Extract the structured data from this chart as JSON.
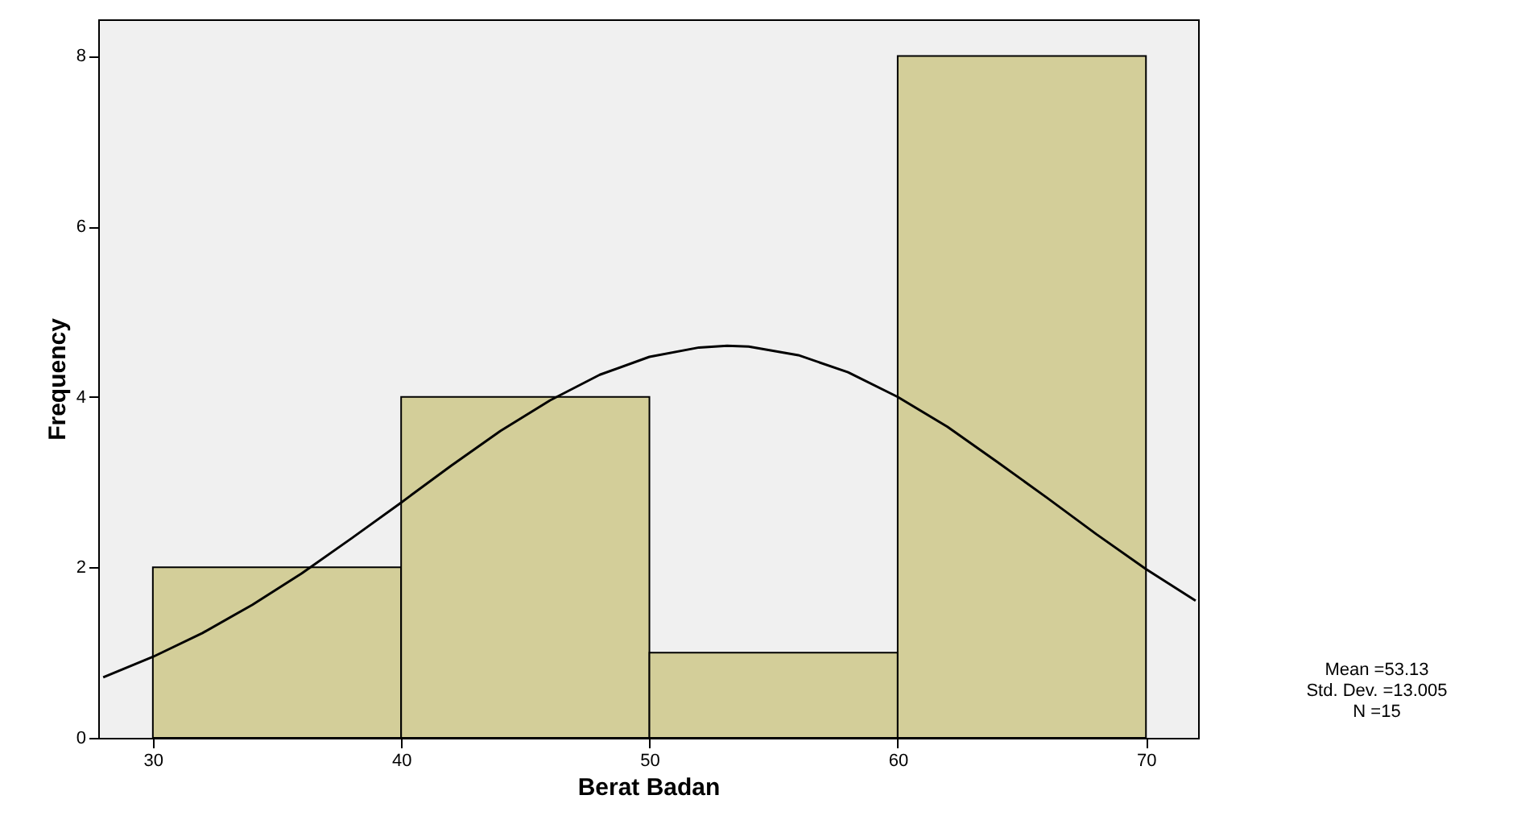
{
  "chart_data": {
    "type": "histogram",
    "xlabel": "Berat Badan",
    "ylabel": "Frequency",
    "bins": [
      30,
      40,
      50,
      60,
      70
    ],
    "values": [
      2,
      4,
      1,
      8
    ],
    "color": "#d3ce99",
    "series": [
      {
        "type": "line",
        "color": "#000000",
        "x": [
          28,
          30,
          32,
          34,
          36,
          38,
          40,
          42,
          44,
          46,
          48,
          50,
          52,
          53.13,
          54,
          56,
          58,
          60,
          62,
          64,
          66,
          68,
          70,
          72
        ],
        "values": [
          0.71,
          0.95,
          1.23,
          1.56,
          1.93,
          2.34,
          2.76,
          3.19,
          3.6,
          3.96,
          4.26,
          4.47,
          4.58,
          4.6,
          4.59,
          4.49,
          4.29,
          4.0,
          3.65,
          3.24,
          2.82,
          2.39,
          1.98,
          1.61
        ]
      }
    ],
    "xlim": [
      27.8,
      72.1
    ],
    "ylim": [
      0,
      8.43
    ],
    "xticks": [
      30,
      40,
      50,
      60,
      70
    ],
    "yticks": [
      0,
      2,
      4,
      6,
      8
    ],
    "annotations": [
      "Mean =53.13",
      "Std. Dev. =13.005",
      "N =15"
    ]
  }
}
